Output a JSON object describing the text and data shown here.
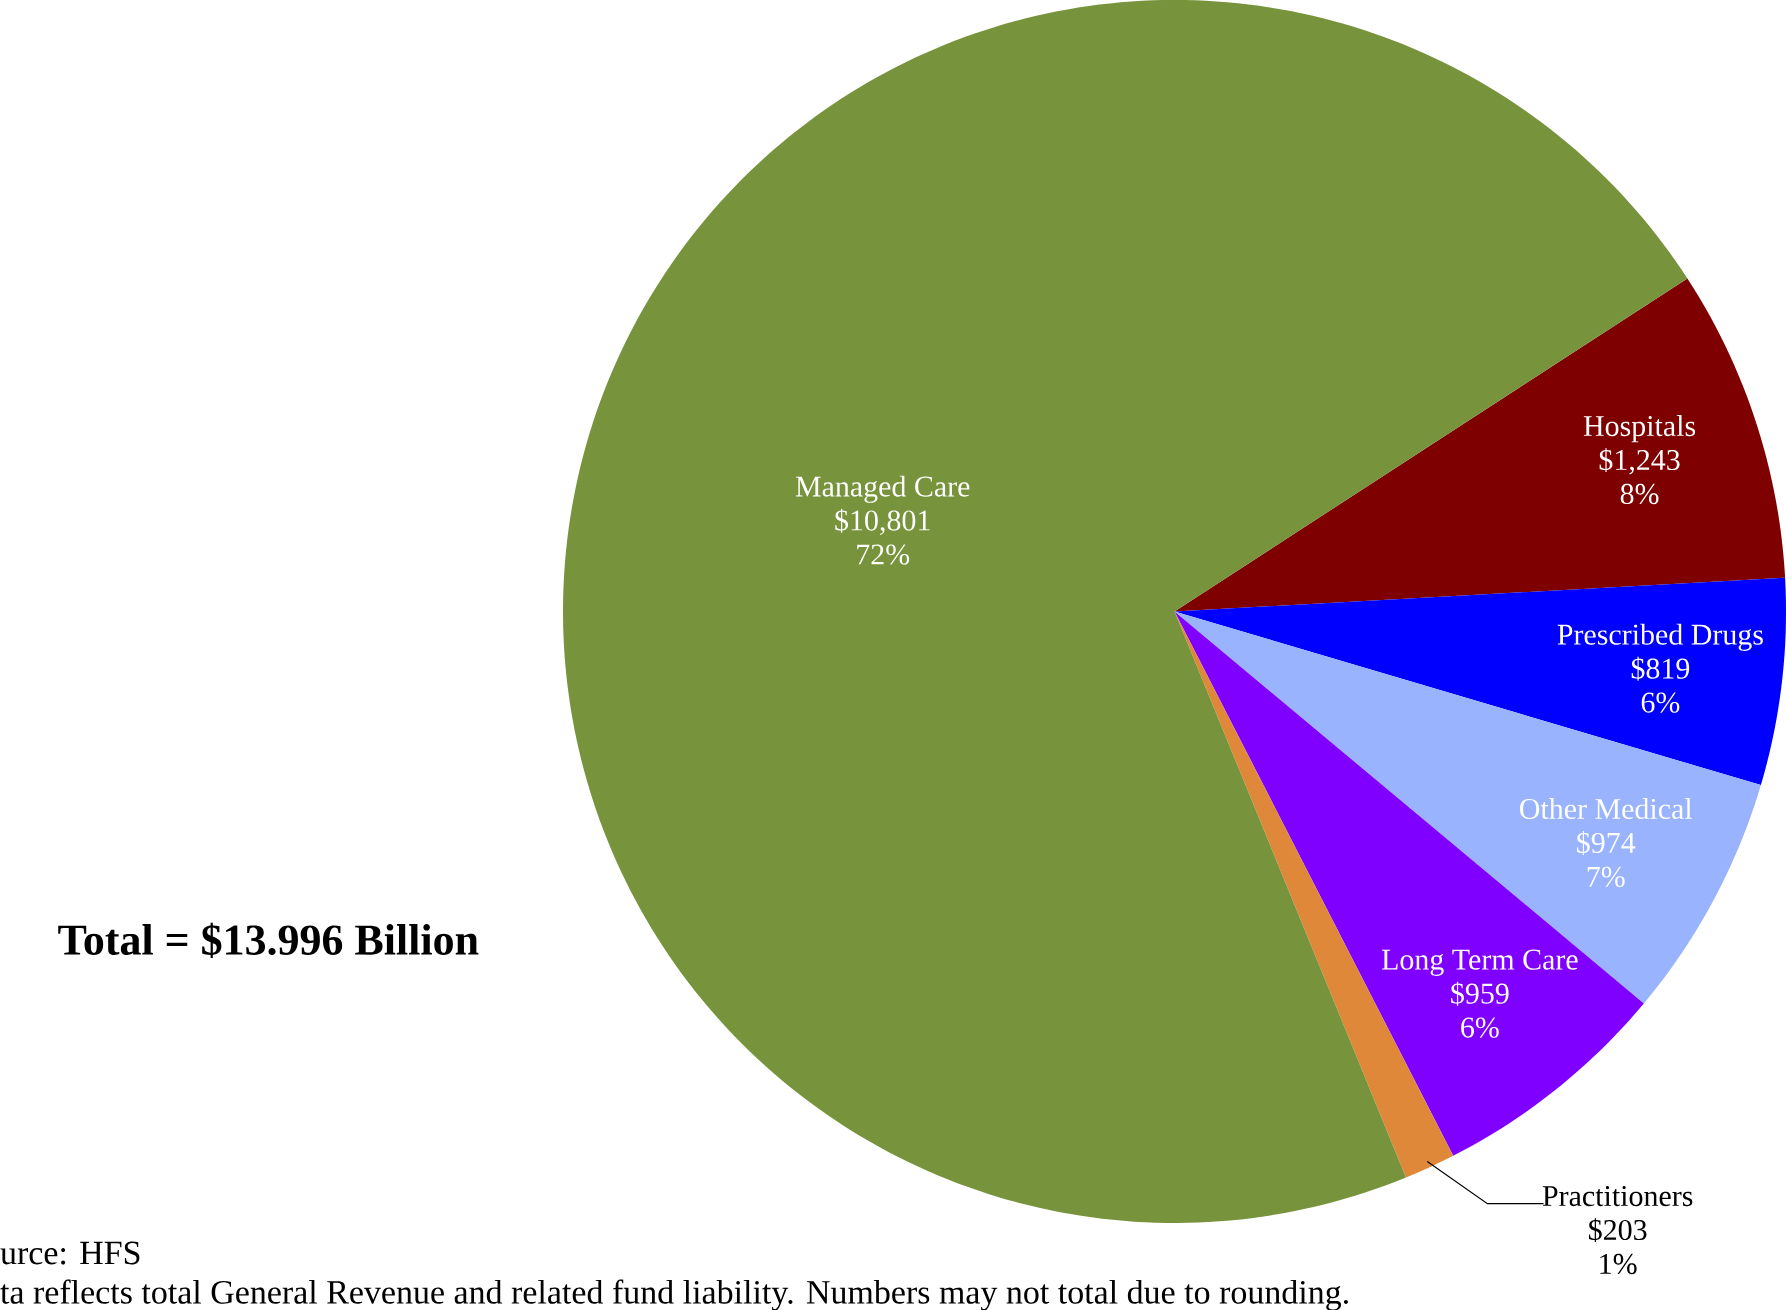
{
  "chart_data": {
    "type": "pie",
    "title": "Total = $13.996 Billion",
    "categories": [
      "Hospitals",
      "Prescribed Drugs",
      "Other Medical",
      "Long Term Care",
      "Practitioners",
      "Managed Care"
    ],
    "values": [
      1243,
      819,
      974,
      959,
      203,
      10801
    ],
    "value_labels": [
      "$1,243",
      "$819",
      "$974",
      "$959",
      "$203",
      "$10,801"
    ],
    "colors": [
      "#7f0000",
      "#0000ff",
      "#99b3ff",
      "#8000ff",
      "#e0883a",
      "#77933c"
    ],
    "annotations": [
      {
        "text": "8%",
        "x": "Hospitals"
      },
      {
        "text": "6%",
        "x": "Prescribed Drugs"
      },
      {
        "text": "7%",
        "x": "Other Medical"
      },
      {
        "text": "6%",
        "x": "Long Term Care"
      },
      {
        "text": "1%",
        "x": "Practitioners"
      },
      {
        "text": "72%",
        "x": "Managed Care"
      },
      "urce: HFS",
      "ta reflects total General Revenue and related fund liability.  Numbers may not total due to rounding."
    ]
  }
}
